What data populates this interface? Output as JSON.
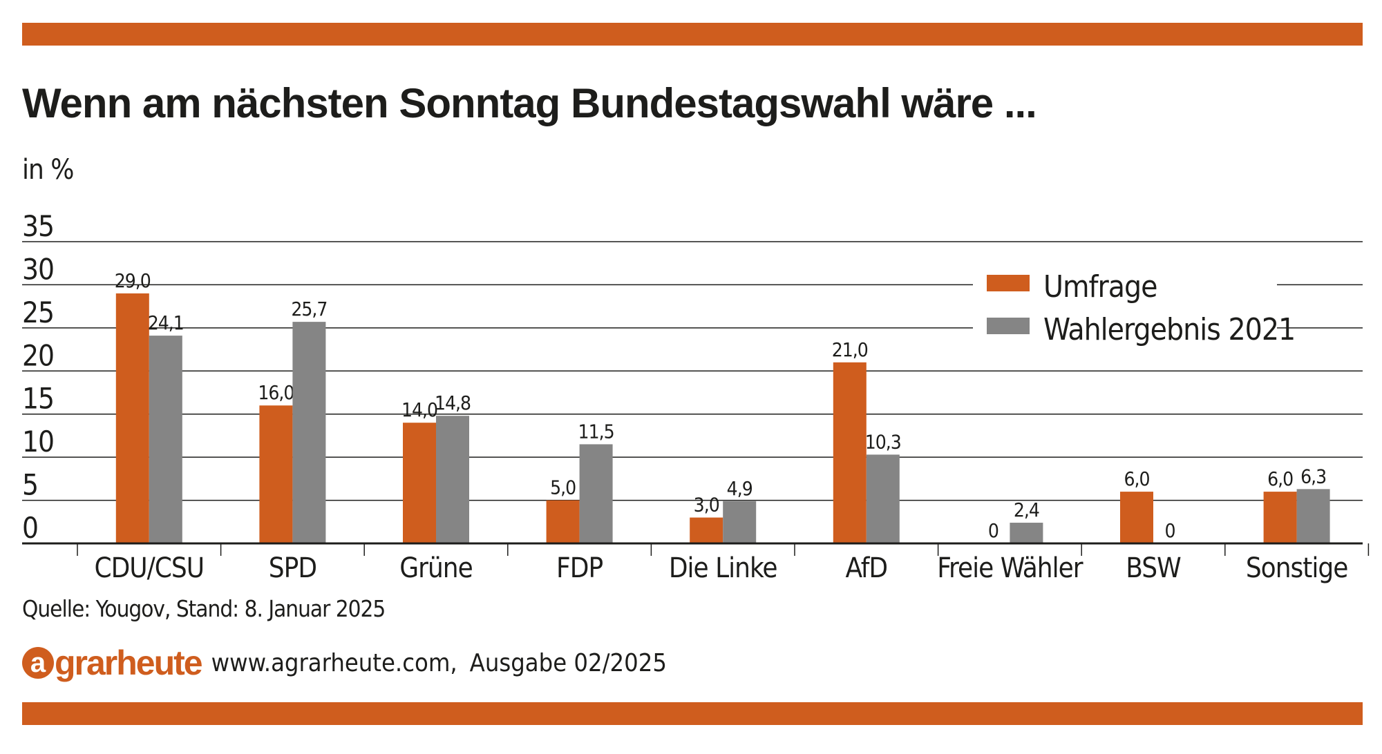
{
  "colors": {
    "accent": "#cf5d1e",
    "gray": "#858585",
    "text": "#1d1d1b",
    "grid": "#1d1d1b"
  },
  "header": {
    "title": "Wenn am nächsten Sonntag Bundestagswahl wäre ...",
    "unit": "in %"
  },
  "source": "Quelle: Yougov, Stand: 8. Januar 2025",
  "footer": {
    "logo_letter": "a",
    "logo_rest": "grarheute",
    "url": "www.agrarheute.com,",
    "issue": "Ausgabe 02/2025"
  },
  "chart_data": {
    "type": "bar",
    "ylim": [
      0,
      35
    ],
    "yticks": [
      0,
      5,
      10,
      15,
      20,
      25,
      30,
      35
    ],
    "grid": true,
    "legend_position": "top-right",
    "categories": [
      "CDU/CSU",
      "SPD",
      "Grüne",
      "FDP",
      "Die Linke",
      "AfD",
      "Freie Wähler",
      "BSW",
      "Sonstige"
    ],
    "series": [
      {
        "name": "Umfrage",
        "color": "#cf5d1e",
        "values": [
          29.0,
          16.0,
          14.0,
          5.0,
          3.0,
          21.0,
          0,
          6.0,
          6.0
        ],
        "labels": [
          "29,0",
          "16,0",
          "14,0",
          "5,0",
          "3,0",
          "21,0",
          "0",
          "6,0",
          "6,0"
        ]
      },
      {
        "name": "Wahlergebnis 2021",
        "color": "#858585",
        "values": [
          24.1,
          25.7,
          14.8,
          11.5,
          4.9,
          10.3,
          2.4,
          0,
          6.3
        ],
        "labels": [
          "24,1",
          "25,7",
          "14,8",
          "11,5",
          "4,9",
          "10,3",
          "2,4",
          "0",
          "6,3"
        ]
      }
    ]
  }
}
